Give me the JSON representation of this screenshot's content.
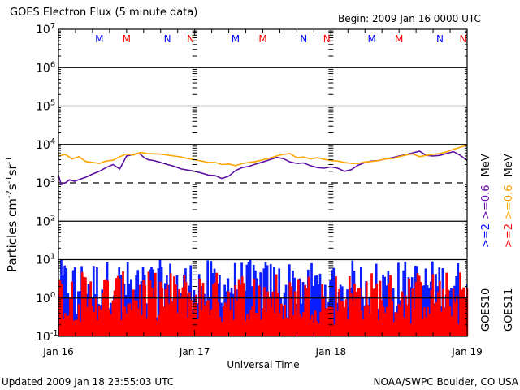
{
  "header": {
    "title": "GOES Electron Flux (5 minute data)",
    "begin": "Begin: 2009 Jan 16 0000 UTC"
  },
  "footer": {
    "updated": "Updated 2009 Jan 18 23:55:03 UTC",
    "credit": "NOAA/SWPC Boulder, CO USA"
  },
  "chart_data": {
    "type": "line",
    "title": "GOES Electron Flux (5 minute data)",
    "xlabel": "Universal Time",
    "ylabel": "Particles cm-2s-1sr-1",
    "ylabel_parts": {
      "base": "Particles cm",
      "e1": "-2",
      "s": "s",
      "e2": "-1",
      "sr": "sr",
      "e3": "-1"
    },
    "yscale": "log",
    "ylim_exp": [
      -1,
      7
    ],
    "y_ticks": [
      {
        "exp": "7",
        "label": "10"
      },
      {
        "exp": "6",
        "label": "10"
      },
      {
        "exp": "5",
        "label": "10"
      },
      {
        "exp": "4",
        "label": "10"
      },
      {
        "exp": "3",
        "label": "10"
      },
      {
        "exp": "2",
        "label": "10"
      },
      {
        "exp": "1",
        "label": "10"
      },
      {
        "exp": "0",
        "label": "10"
      },
      {
        "exp": "-1",
        "label": "10"
      }
    ],
    "x_days": 3,
    "x_ticks": [
      "Jan 16",
      "Jan 17",
      "Jan 18",
      "Jan 19"
    ],
    "solid_gridlines_exp": [
      6,
      5,
      4,
      2,
      1,
      0
    ],
    "dashed_gridline_exp": 3,
    "markers": [
      {
        "day": 0.3,
        "label": "M",
        "color": "#0000ff"
      },
      {
        "day": 0.5,
        "label": "M",
        "color": "#ff0000"
      },
      {
        "day": 0.8,
        "label": "N",
        "color": "#0000ff"
      },
      {
        "day": 0.97,
        "label": "N",
        "color": "#ff0000"
      },
      {
        "day": 1.3,
        "label": "M",
        "color": "#0000ff"
      },
      {
        "day": 1.5,
        "label": "M",
        "color": "#ff0000"
      },
      {
        "day": 1.8,
        "label": "N",
        "color": "#0000ff"
      },
      {
        "day": 1.97,
        "label": "N",
        "color": "#ff0000"
      },
      {
        "day": 2.3,
        "label": "M",
        "color": "#0000ff"
      },
      {
        "day": 2.5,
        "label": "M",
        "color": "#ff0000"
      },
      {
        "day": 2.8,
        "label": "N",
        "color": "#0000ff"
      },
      {
        "day": 2.97,
        "label": "N",
        "color": "#ff0000"
      }
    ],
    "legend": {
      "position": "right",
      "series_labels": [
        {
          "pre": ">=2",
          "post": ">=0.6",
          "unit": "MeV",
          "pre_color": "#0000ff",
          "post_color": "#6a0dad",
          "sat": "GOES10"
        },
        {
          "pre": ">=2",
          "post": ">=0.6",
          "unit": "MeV",
          "pre_color": "#ff0000",
          "post_color": "#ffa500",
          "sat": "GOES11"
        }
      ]
    },
    "series": [
      {
        "name": "GOES10 >=0.6 MeV",
        "color": "#5b0fa0",
        "x_days": [
          0,
          0.02,
          0.05,
          0.08,
          0.12,
          0.16,
          0.2,
          0.25,
          0.3,
          0.35,
          0.4,
          0.45,
          0.5,
          0.55,
          0.58,
          0.6,
          0.63,
          0.66,
          0.7,
          0.75,
          0.8,
          0.85,
          0.9,
          0.95,
          1.0,
          1.05,
          1.1,
          1.15,
          1.2,
          1.25,
          1.3,
          1.35,
          1.4,
          1.45,
          1.5,
          1.55,
          1.6,
          1.65,
          1.7,
          1.75,
          1.8,
          1.85,
          1.9,
          1.95,
          2.0,
          2.05,
          2.1,
          2.15,
          2.2,
          2.25,
          2.3,
          2.35,
          2.4,
          2.45,
          2.5,
          2.55,
          2.6,
          2.65,
          2.7,
          2.75,
          2.8,
          2.85,
          2.9,
          2.95,
          3.0
        ],
        "y": [
          1600,
          900,
          1000,
          1200,
          1100,
          1250,
          1400,
          1700,
          2000,
          2500,
          3000,
          2300,
          5000,
          5500,
          5800,
          5600,
          4500,
          4000,
          3800,
          3400,
          3000,
          2700,
          2300,
          2150,
          2000,
          1800,
          1600,
          1550,
          1300,
          1500,
          2100,
          2500,
          2700,
          3100,
          3500,
          4000,
          4600,
          4300,
          3500,
          3200,
          3300,
          2800,
          2500,
          2400,
          2600,
          2400,
          2000,
          2200,
          2900,
          3400,
          3700,
          3800,
          4200,
          4500,
          5000,
          5400,
          6000,
          6700,
          5200,
          5000,
          5200,
          5800,
          6500,
          5200,
          3800
        ]
      },
      {
        "name": "GOES11 >=0.6 MeV",
        "color": "#ffa500",
        "x_days": [
          0,
          0.05,
          0.1,
          0.15,
          0.2,
          0.25,
          0.3,
          0.35,
          0.4,
          0.45,
          0.5,
          0.55,
          0.6,
          0.65,
          0.7,
          0.75,
          0.8,
          0.85,
          0.9,
          0.95,
          1.0,
          1.05,
          1.1,
          1.15,
          1.2,
          1.25,
          1.3,
          1.35,
          1.4,
          1.45,
          1.5,
          1.55,
          1.6,
          1.65,
          1.7,
          1.75,
          1.8,
          1.85,
          1.9,
          1.95,
          2.0,
          2.05,
          2.1,
          2.15,
          2.2,
          2.25,
          2.3,
          2.35,
          2.4,
          2.45,
          2.5,
          2.55,
          2.6,
          2.65,
          2.7,
          2.75,
          2.8,
          2.85,
          2.9,
          2.95,
          3.0
        ],
        "y": [
          5000,
          5500,
          4200,
          4800,
          3600,
          3400,
          3200,
          3700,
          3900,
          4800,
          5600,
          5300,
          6200,
          5800,
          5700,
          5600,
          5300,
          5000,
          4700,
          4300,
          4000,
          3700,
          3400,
          3400,
          3000,
          3100,
          2800,
          3200,
          3400,
          3600,
          4000,
          4400,
          5000,
          5500,
          5800,
          4500,
          4700,
          4200,
          4500,
          4100,
          3800,
          3700,
          3400,
          3200,
          3200,
          3500,
          3600,
          3800,
          4200,
          4300,
          4800,
          5300,
          5700,
          4800,
          5200,
          5500,
          5800,
          6400,
          7500,
          8500,
          9600
        ]
      },
      {
        "name": "GOES10 >=2 MeV",
        "color": "#0a1eff",
        "style": "bars",
        "count": 240,
        "y_range_exp": [
          -1,
          1
        ],
        "typical_peak_exp": 0.6
      },
      {
        "name": "GOES11 >=2 MeV",
        "color": "#ff0000",
        "style": "bars",
        "count": 240,
        "y_range_exp": [
          -1,
          1
        ],
        "typical_peak_exp": 0.3
      }
    ]
  }
}
